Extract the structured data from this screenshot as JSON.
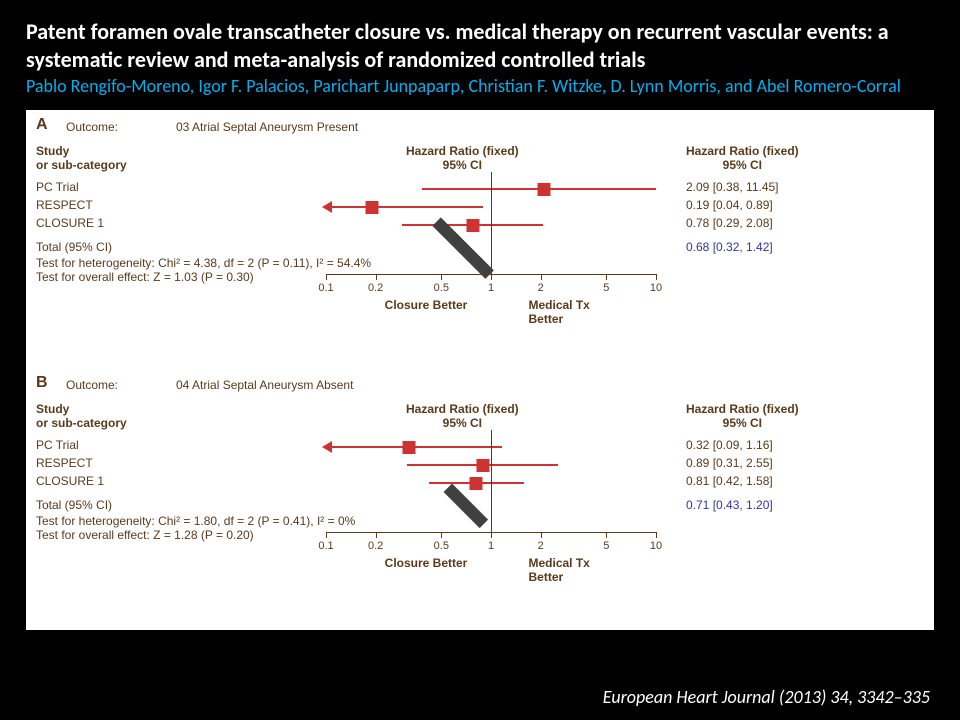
{
  "title_line1": "Patent foramen ovale transcatheter closure vs. medical therapy on recurrent vascular events: a systematic review and meta-analysis of randomized controlled trials",
  "authors_prefix": "Pablo Rengifo-Moreno, Igor F. Palacios, Parichart Junpaparp, Christian F. Witzke, D. Lynn Morris, and Abel Romero-Corral",
  "citation": "European Heart Journal (2013) 34, 3342–335",
  "axis": {
    "log_ticks": [
      0.1,
      0.2,
      0.5,
      1,
      2,
      5,
      10
    ],
    "left_label": "Closure Better",
    "right_label": "Medical Tx Better",
    "xlog_min": 0.1,
    "xlog_max": 10
  },
  "colors": {
    "marker": "#cc3333",
    "text": "#5a3a1a",
    "purple": "#3333aa",
    "diamond": "#404040",
    "bg": "#ffffff"
  },
  "panelA": {
    "letter": "A",
    "outcome_label": "Outcome:",
    "outcome": "03 Atrial Septal Aneurysm Present",
    "col1": "Study\nor sub-category",
    "col2": "Hazard Ratio (fixed)\n95% CI",
    "col3": "Hazard Ratio (fixed)\n95% CI",
    "rows": [
      {
        "name": "PC Trial",
        "hr": 2.09,
        "lo": 0.38,
        "hi": 11.45,
        "txt": "2.09 [0.38, 11.45]"
      },
      {
        "name": "RESPECT",
        "hr": 0.19,
        "lo": 0.04,
        "hi": 0.89,
        "txt": "0.19 [0.04, 0.89]"
      },
      {
        "name": "CLOSURE 1",
        "hr": 0.78,
        "lo": 0.29,
        "hi": 2.08,
        "txt": "0.78 [0.29, 2.08]"
      }
    ],
    "total_label": "Total (95% CI)",
    "total": {
      "hr": 0.68,
      "lo": 0.32,
      "hi": 1.42,
      "txt": "0.68 [0.32, 1.42]"
    },
    "het": "Test for heterogeneity: Chi² = 4.38, df = 2 (P = 0.11), I² = 54.4%",
    "eff": "Test for overall effect: Z = 1.03 (P = 0.30)"
  },
  "panelB": {
    "letter": "B",
    "outcome_label": "Outcome:",
    "outcome": "04 Atrial Septal Aneurysm Absent",
    "col1": "Study\nor sub-category",
    "col2": "Hazard Ratio (fixed)\n95% CI",
    "col3": "Hazard Ratio (fixed)\n95% CI",
    "rows": [
      {
        "name": "PC Trial",
        "hr": 0.32,
        "lo": 0.09,
        "hi": 1.16,
        "txt": "0.32 [0.09, 1.16]"
      },
      {
        "name": "RESPECT",
        "hr": 0.89,
        "lo": 0.31,
        "hi": 2.55,
        "txt": "0.89 [0.31, 2.55]"
      },
      {
        "name": "CLOSURE 1",
        "hr": 0.81,
        "lo": 0.42,
        "hi": 1.58,
        "txt": "0.81 [0.42, 1.58]"
      }
    ],
    "total_label": "Total (95% CI)",
    "total": {
      "hr": 0.71,
      "lo": 0.43,
      "hi": 1.2,
      "txt": "0.71 [0.43, 1.20]"
    },
    "het": "Test for heterogeneity: Chi² = 1.80, df = 2 (P = 0.41), I² = 0%",
    "eff": "Test for overall effect: Z = 1.28 (P = 0.20)"
  }
}
